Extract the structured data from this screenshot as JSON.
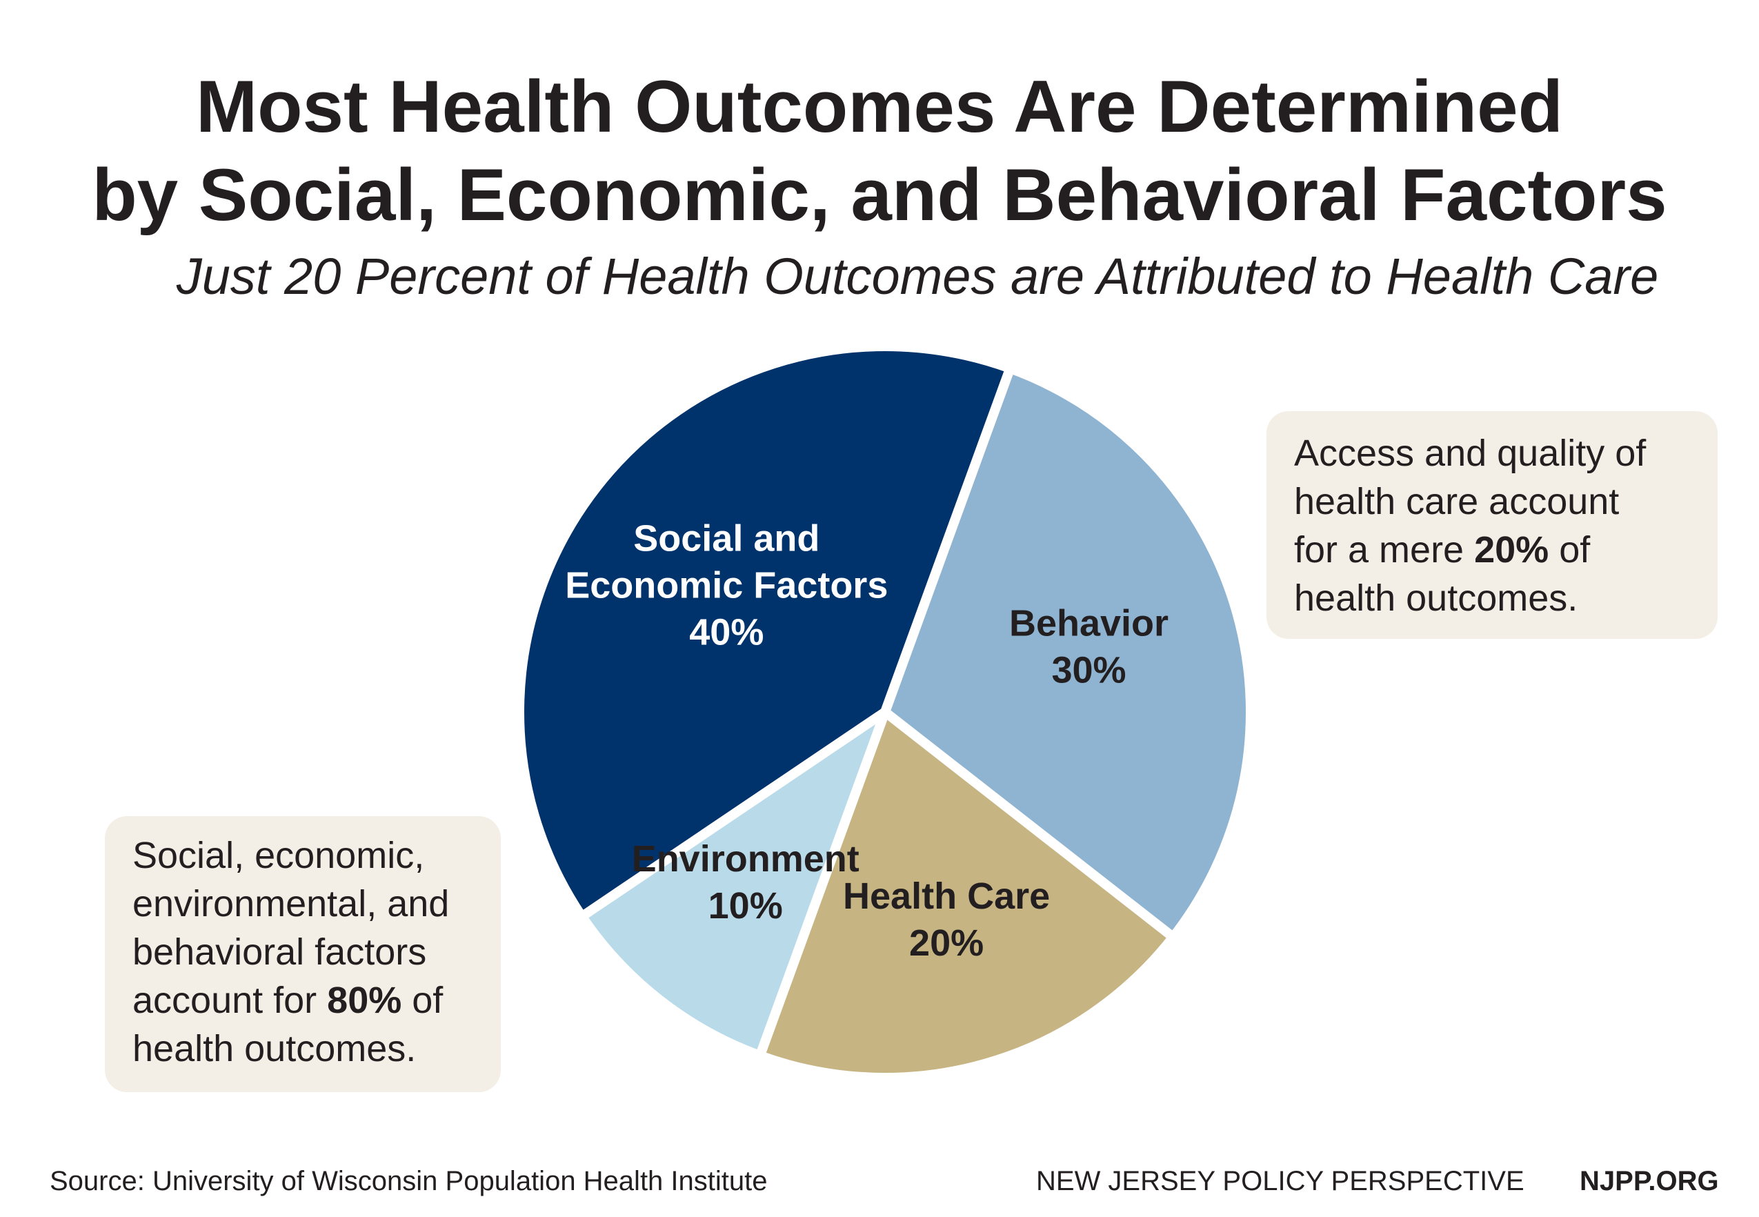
{
  "header": {
    "title_line1": "Most Health Outcomes Are Determined",
    "title_line2": "by Social, Economic, and Behavioral Factors",
    "subtitle": "Just 20 Percent of Health Outcomes are Attributed to Health Care"
  },
  "chart_data": {
    "type": "pie",
    "title": "Most Health Outcomes Are Determined by Social, Economic, and Behavioral Factors",
    "subtitle": "Just 20 Percent of Health Outcomes are Attributed to Health Care",
    "unit": "%",
    "slices": [
      {
        "label_lines": [
          "Behavior"
        ],
        "value": 30,
        "value_label": "30%",
        "color": "#8fb4d1",
        "text_color": "#231f20"
      },
      {
        "label_lines": [
          "Health Care"
        ],
        "value": 20,
        "value_label": "20%",
        "color": "#c6b483",
        "text_color": "#231f20"
      },
      {
        "label_lines": [
          "Environment"
        ],
        "value": 10,
        "value_label": "10%",
        "color": "#b8dae9",
        "text_color": "#231f20"
      },
      {
        "label_lines": [
          "Social and",
          "Economic Factors"
        ],
        "value": 40,
        "value_label": "40%",
        "color": "#00336b",
        "text_color": "#ffffff"
      }
    ],
    "legend": "none",
    "start_angle_deg": 20,
    "direction": "clockwise"
  },
  "callouts": {
    "right": {
      "line1": "Access and quality of",
      "line2": "health care account",
      "line3_pre": "for a mere ",
      "line3_bold": "20%",
      "line3_post": " of",
      "line4": "health outcomes."
    },
    "left": {
      "line1": "Social, economic,",
      "line2": "environmental, and",
      "line3": "behavioral factors",
      "line4_pre": "account for ",
      "line4_bold": "80%",
      "line4_post": " of",
      "line5": "health outcomes."
    }
  },
  "footer": {
    "source": "Source: University of Wisconsin Population Health Institute",
    "org": "NEW JERSEY POLICY PERSPECTIVE",
    "site": "NJPP.ORG"
  }
}
